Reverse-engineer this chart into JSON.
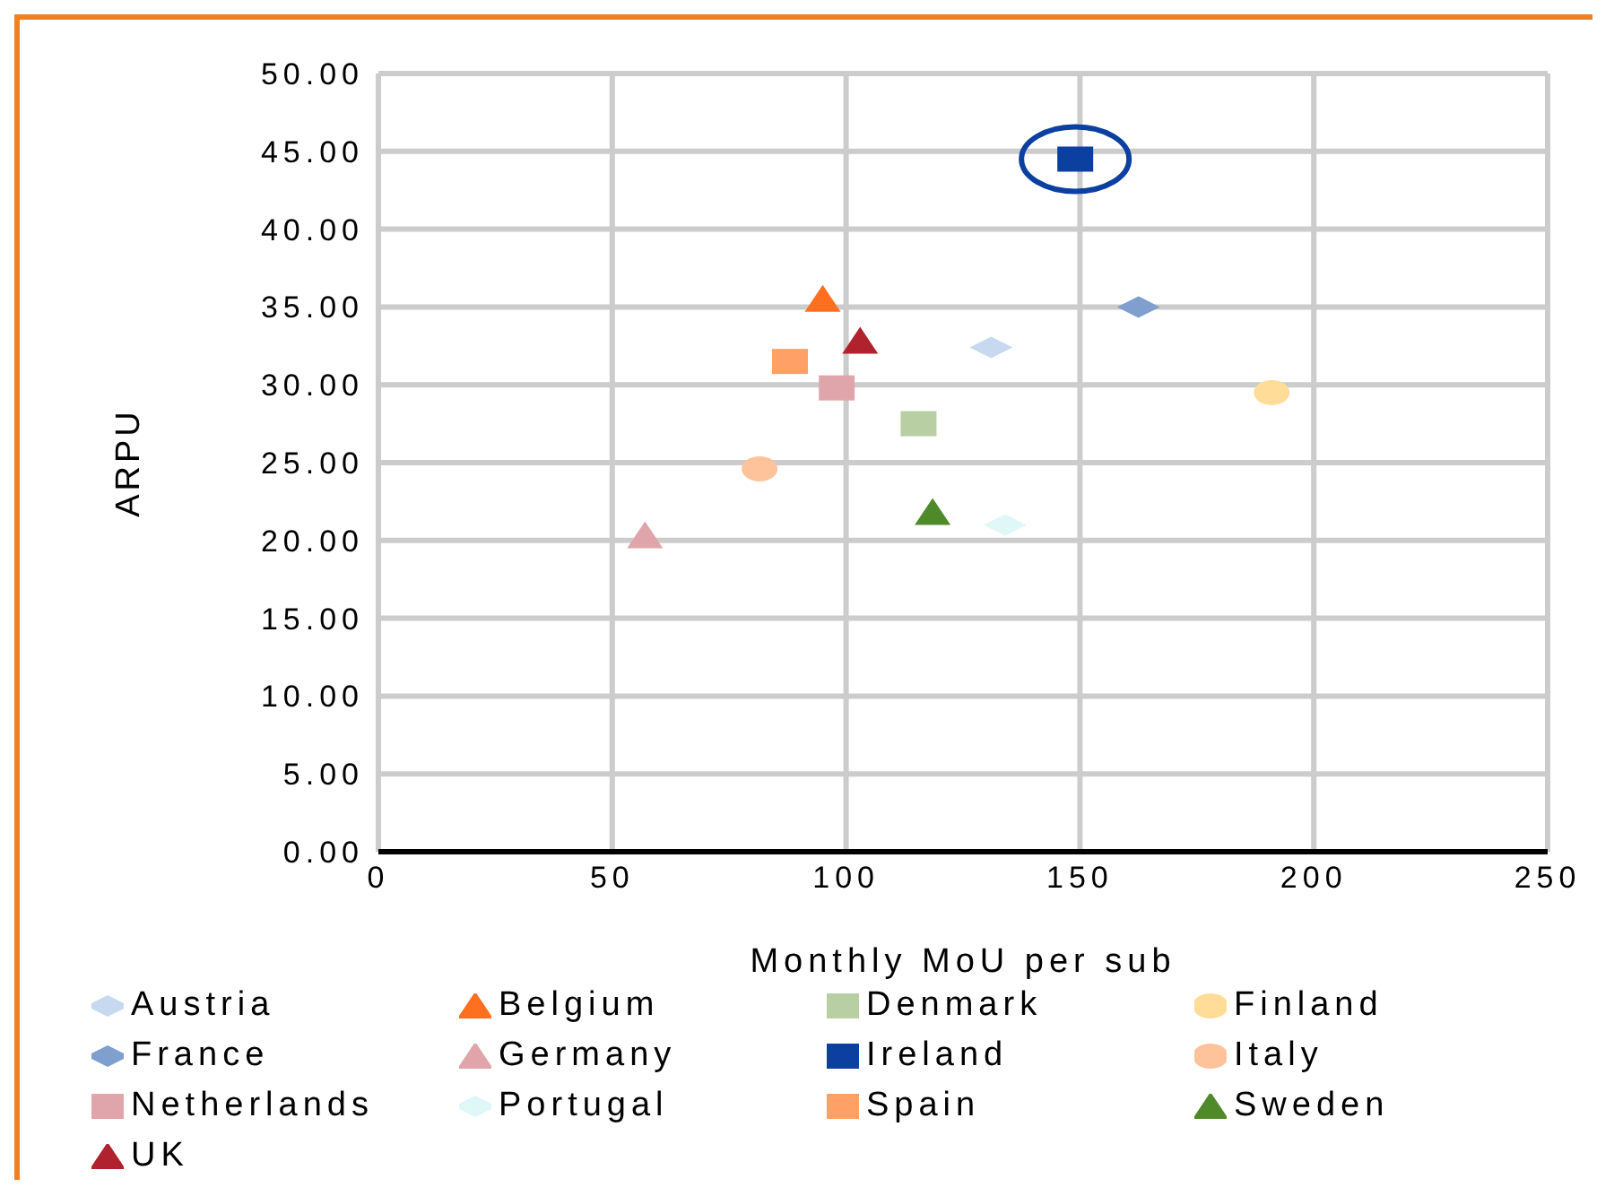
{
  "chart_data": {
    "type": "scatter",
    "xlabel": "Monthly MoU per sub",
    "ylabel": "ARPU",
    "xlim": [
      0,
      250
    ],
    "xticks": [
      0,
      50,
      100,
      150,
      200,
      250
    ],
    "ylim": [
      0,
      50
    ],
    "yticks": [
      {
        "value": 0,
        "label": "0.00"
      },
      {
        "value": 5,
        "label": "5.00"
      },
      {
        "value": 10,
        "label": "10.00"
      },
      {
        "value": 15,
        "label": "15.00"
      },
      {
        "value": 20,
        "label": "20.00"
      },
      {
        "value": 25,
        "label": "25.00"
      },
      {
        "value": 30,
        "label": "30.00"
      },
      {
        "value": 35,
        "label": "35.00"
      },
      {
        "value": 40,
        "label": "40.00"
      },
      {
        "value": 45,
        "label": "45.00"
      },
      {
        "value": 50,
        "label": "50.00"
      }
    ],
    "grid": true,
    "legend": "bottom",
    "series": [
      {
        "name": "Austria",
        "color": "#c6d9f1",
        "marker": "diamond",
        "x": [
          131
        ],
        "values": [
          32.4
        ]
      },
      {
        "name": "Belgium",
        "color": "#ff6f1f",
        "marker": "triangle",
        "x": [
          95
        ],
        "values": [
          35.5
        ]
      },
      {
        "name": "Denmark",
        "color": "#b7cfa2",
        "marker": "square",
        "x": [
          115.5
        ],
        "values": [
          27.5
        ]
      },
      {
        "name": "Finland",
        "color": "#ffdd99",
        "marker": "circle",
        "x": [
          191
        ],
        "values": [
          29.5
        ]
      },
      {
        "name": "France",
        "color": "#7f9fcf",
        "marker": "diamond",
        "x": [
          162.5
        ],
        "values": [
          35
        ]
      },
      {
        "name": "Germany",
        "color": "#e0a5aa",
        "marker": "triangle",
        "x": [
          57
        ],
        "values": [
          20.3
        ]
      },
      {
        "name": "Ireland",
        "color": "#0b3fa0",
        "marker": "square",
        "x": [
          149
        ],
        "values": [
          44.5
        ]
      },
      {
        "name": "Italy",
        "color": "#ffc39b",
        "marker": "circle",
        "x": [
          81.5
        ],
        "values": [
          24.6
        ]
      },
      {
        "name": "Netherlands",
        "color": "#e0a5aa",
        "marker": "square",
        "x": [
          98
        ],
        "values": [
          29.8
        ]
      },
      {
        "name": "Portugal",
        "color": "#e0f7f7",
        "marker": "diamond",
        "x": [
          134
        ],
        "values": [
          21
        ]
      },
      {
        "name": "Spain",
        "color": "#ffa066",
        "marker": "square",
        "x": [
          88
        ],
        "values": [
          31.5
        ]
      },
      {
        "name": "Sweden",
        "color": "#4f8a2a",
        "marker": "triangle",
        "x": [
          118.5
        ],
        "values": [
          21.8
        ]
      },
      {
        "name": "UK",
        "color": "#b0222e",
        "marker": "triangle",
        "x": [
          103
        ],
        "values": [
          32.8
        ]
      }
    ]
  }
}
